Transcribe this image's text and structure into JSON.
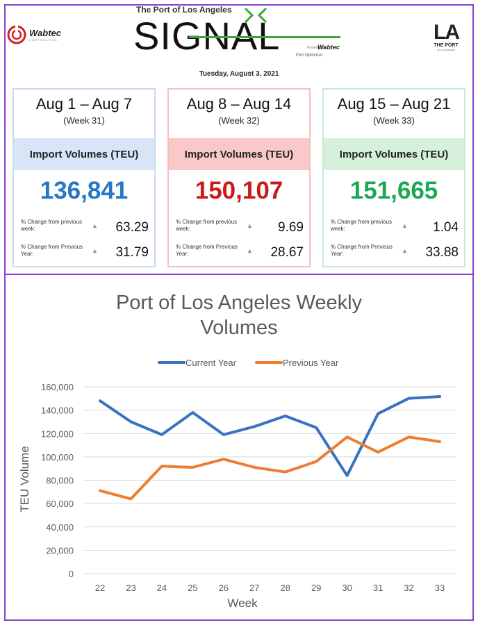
{
  "header": {
    "subtitle": "The Port of Los Angeles",
    "signal_word": "SIGNAL",
    "powered_by": "Powered by",
    "wabtec_small": "Wabtec",
    "port_optimizer": "Port Optimizer",
    "date": "Tuesday, August 3, 2021",
    "wabtec_logo": "Wabtec",
    "wabtec_corp": "CORPORATION",
    "la_mark": "LA",
    "la_port": "THE PORT",
    "la_sub": "OF LOS ANGELES"
  },
  "cards": [
    {
      "title": "Aug 1 – Aug 7",
      "week": "(Week 31)",
      "band": "Import Volumes (TEU)",
      "value": "136,841",
      "stat1_label": "% Change from previous week:",
      "stat1_value": "63.29",
      "stat2_label": "% Change from Previous Year:",
      "stat2_value": "31.79",
      "arrow": "▲"
    },
    {
      "title": "Aug 8 – Aug 14",
      "week": "(Week 32)",
      "band": "Import Volumes (TEU)",
      "value": "150,107",
      "stat1_label": "% Change from previous week:",
      "stat1_value": "9.69",
      "stat2_label": "% Change from Previous Year:",
      "stat2_value": "28.67",
      "arrow": "▲"
    },
    {
      "title": "Aug 15 – Aug 21",
      "week": "(Week 33)",
      "band": "Import Volumes (TEU)",
      "value": "151,665",
      "stat1_label": "% Change from previous week:",
      "stat1_value": "1.04",
      "stat2_label": "% Change from Previous Year:",
      "stat2_value": "33.88",
      "arrow": "▲"
    }
  ],
  "chart_data": {
    "type": "line",
    "title": "Port of Los Angeles Weekly Volumes",
    "title_line1": "Port of Los Angeles Weekly",
    "title_line2": "Volumes",
    "xlabel": "Week",
    "ylabel": "TEU Volume",
    "x": [
      "22",
      "23",
      "24",
      "25",
      "26",
      "27",
      "28",
      "29",
      "30",
      "31",
      "32",
      "33"
    ],
    "ylim": [
      0,
      160000
    ],
    "yticks": [
      "0",
      "20,000",
      "40,000",
      "60,000",
      "80,000",
      "100,000",
      "120,000",
      "140,000",
      "160,000"
    ],
    "ytick_values": [
      0,
      20000,
      40000,
      60000,
      80000,
      100000,
      120000,
      140000,
      160000
    ],
    "legend_position": "top",
    "grid": true,
    "series": [
      {
        "name": "Current Year",
        "color": "#3a72c0",
        "values": [
          148000,
          130000,
          119000,
          138000,
          119000,
          126000,
          135000,
          125000,
          84000,
          137000,
          150107,
          151665
        ]
      },
      {
        "name": "Previous Year",
        "color": "#ee7d31",
        "values": [
          71000,
          64000,
          92000,
          91000,
          98000,
          91000,
          87000,
          96000,
          117000,
          104000,
          117000,
          113000
        ]
      }
    ]
  }
}
